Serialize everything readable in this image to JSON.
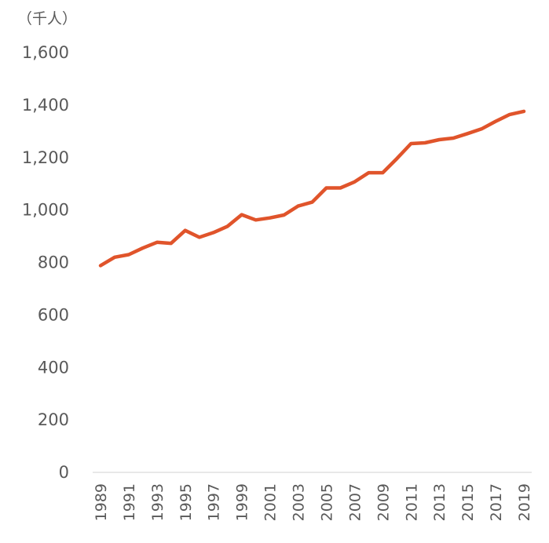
{
  "chart_data": {
    "type": "line",
    "unit_label": "（千人）",
    "ylim": [
      0,
      1600
    ],
    "y_ticks": [
      "0",
      "200",
      "400",
      "600",
      "800",
      "1,000",
      "1,200",
      "1,400",
      "1,600"
    ],
    "y_tick_values": [
      0,
      200,
      400,
      600,
      800,
      1000,
      1200,
      1400,
      1600
    ],
    "x": [
      1989,
      1990,
      1991,
      1992,
      1993,
      1994,
      1995,
      1996,
      1997,
      1998,
      1999,
      2000,
      2001,
      2002,
      2003,
      2004,
      2005,
      2006,
      2007,
      2008,
      2009,
      2010,
      2011,
      2012,
      2013,
      2014,
      2015,
      2016,
      2017,
      2018,
      2019
    ],
    "x_tick_labels": [
      "1989",
      "1991",
      "1993",
      "1995",
      "1997",
      "1999",
      "2001",
      "2003",
      "2005",
      "2007",
      "2009",
      "2011",
      "2013",
      "2015",
      "2017",
      "2019"
    ],
    "series": [
      {
        "values": [
          788,
          820,
          830,
          855,
          877,
          873,
          922,
          896,
          914,
          938,
          982,
          962,
          970,
          981,
          1015,
          1030,
          1084,
          1084,
          1107,
          1142,
          1142,
          1196,
          1253,
          1256,
          1268,
          1274,
          1291,
          1309,
          1338,
          1364,
          1376
        ],
        "color": "#E0542B"
      }
    ],
    "grid": false,
    "legend": "none"
  }
}
